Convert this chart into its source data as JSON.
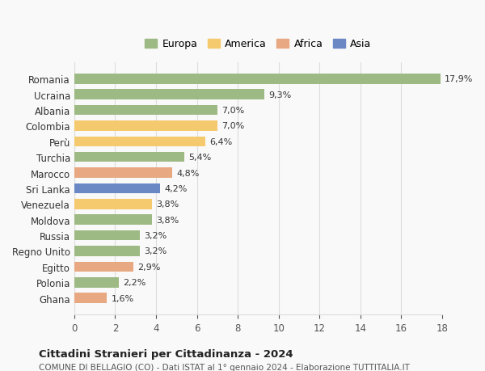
{
  "countries": [
    "Romania",
    "Ucraina",
    "Albania",
    "Colombia",
    "Perù",
    "Turchia",
    "Marocco",
    "Sri Lanka",
    "Venezuela",
    "Moldova",
    "Russia",
    "Regno Unito",
    "Egitto",
    "Polonia",
    "Ghana"
  ],
  "values": [
    17.9,
    9.3,
    7.0,
    7.0,
    6.4,
    5.4,
    4.8,
    4.2,
    3.8,
    3.8,
    3.2,
    3.2,
    2.9,
    2.2,
    1.6
  ],
  "labels": [
    "17,9%",
    "9,3%",
    "7,0%",
    "7,0%",
    "6,4%",
    "5,4%",
    "4,8%",
    "4,2%",
    "3,8%",
    "3,8%",
    "3,2%",
    "3,2%",
    "2,9%",
    "2,2%",
    "1,6%"
  ],
  "colors": [
    "#9eba84",
    "#9eba84",
    "#9eba84",
    "#f5c96e",
    "#f5c96e",
    "#9eba84",
    "#e8a882",
    "#6b88c4",
    "#f5c96e",
    "#9eba84",
    "#9eba84",
    "#9eba84",
    "#e8a882",
    "#9eba84",
    "#e8a882"
  ],
  "continent_colors": {
    "Europa": "#9eba84",
    "America": "#f5c96e",
    "Africa": "#e8a882",
    "Asia": "#6b88c4"
  },
  "xlim": [
    0,
    18
  ],
  "xticks": [
    0,
    2,
    4,
    6,
    8,
    10,
    12,
    14,
    16,
    18
  ],
  "title": "Cittadini Stranieri per Cittadinanza - 2024",
  "subtitle": "COMUNE DI BELLAGIO (CO) - Dati ISTAT al 1° gennaio 2024 - Elaborazione TUTTITALIA.IT",
  "background_color": "#f9f9f9",
  "bar_height": 0.65,
  "grid_color": "#dddddd"
}
